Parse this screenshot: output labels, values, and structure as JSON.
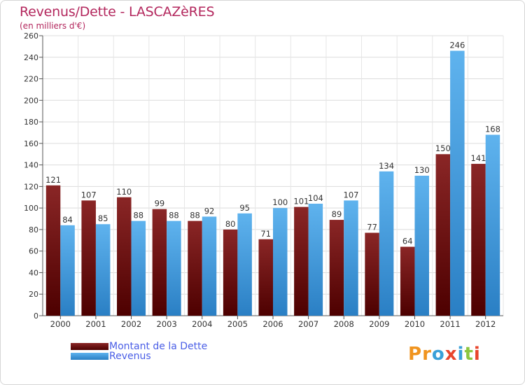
{
  "title": "Revenus/Dette - LASCAZèRES",
  "subtitle": "(en milliers d'€)",
  "logo": {
    "text": "Proxiti",
    "letters": [
      "P",
      "r",
      "o",
      "x",
      "i",
      "t",
      "i"
    ]
  },
  "colors": {
    "debt": "#7a1414",
    "revenue": "#4ea6e6",
    "title": "#b3275d",
    "legend_text": "#4a5ee6",
    "logo": [
      "#f0941f",
      "#f0941f",
      "#3aa0d8",
      "#e8452c",
      "#3aa0d8",
      "#8cc63f",
      "#e8452c"
    ]
  },
  "chart_data": {
    "type": "bar",
    "categories": [
      "2000",
      "2001",
      "2002",
      "2003",
      "2004",
      "2005",
      "2006",
      "2007",
      "2008",
      "2009",
      "2010",
      "2011",
      "2012"
    ],
    "series": [
      {
        "name": "Montant de la Dette",
        "values": [
          121,
          107,
          110,
          99,
          88,
          80,
          71,
          101,
          89,
          77,
          64,
          150,
          141
        ]
      },
      {
        "name": "Revenus",
        "values": [
          84,
          85,
          88,
          88,
          92,
          95,
          100,
          104,
          107,
          134,
          130,
          246,
          168
        ]
      }
    ],
    "ylim": [
      0,
      260
    ],
    "yticks": [
      0,
      20,
      40,
      60,
      80,
      100,
      120,
      140,
      160,
      180,
      200,
      220,
      240,
      260
    ],
    "grid": true,
    "legend_position": "bottom-left"
  }
}
